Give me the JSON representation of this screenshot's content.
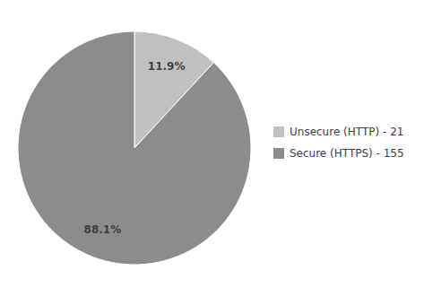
{
  "chart_data": {
    "type": "pie",
    "categories": [
      "Unsecure (HTTP) - 21",
      "Secure (HTTPS) - 155"
    ],
    "values": [
      11.9,
      88.1
    ],
    "value_labels": [
      "11.9%",
      "88.1%"
    ],
    "colors": [
      "#c0c0c0",
      "#8c8c8c"
    ],
    "data_labels": true,
    "legend": "right"
  }
}
